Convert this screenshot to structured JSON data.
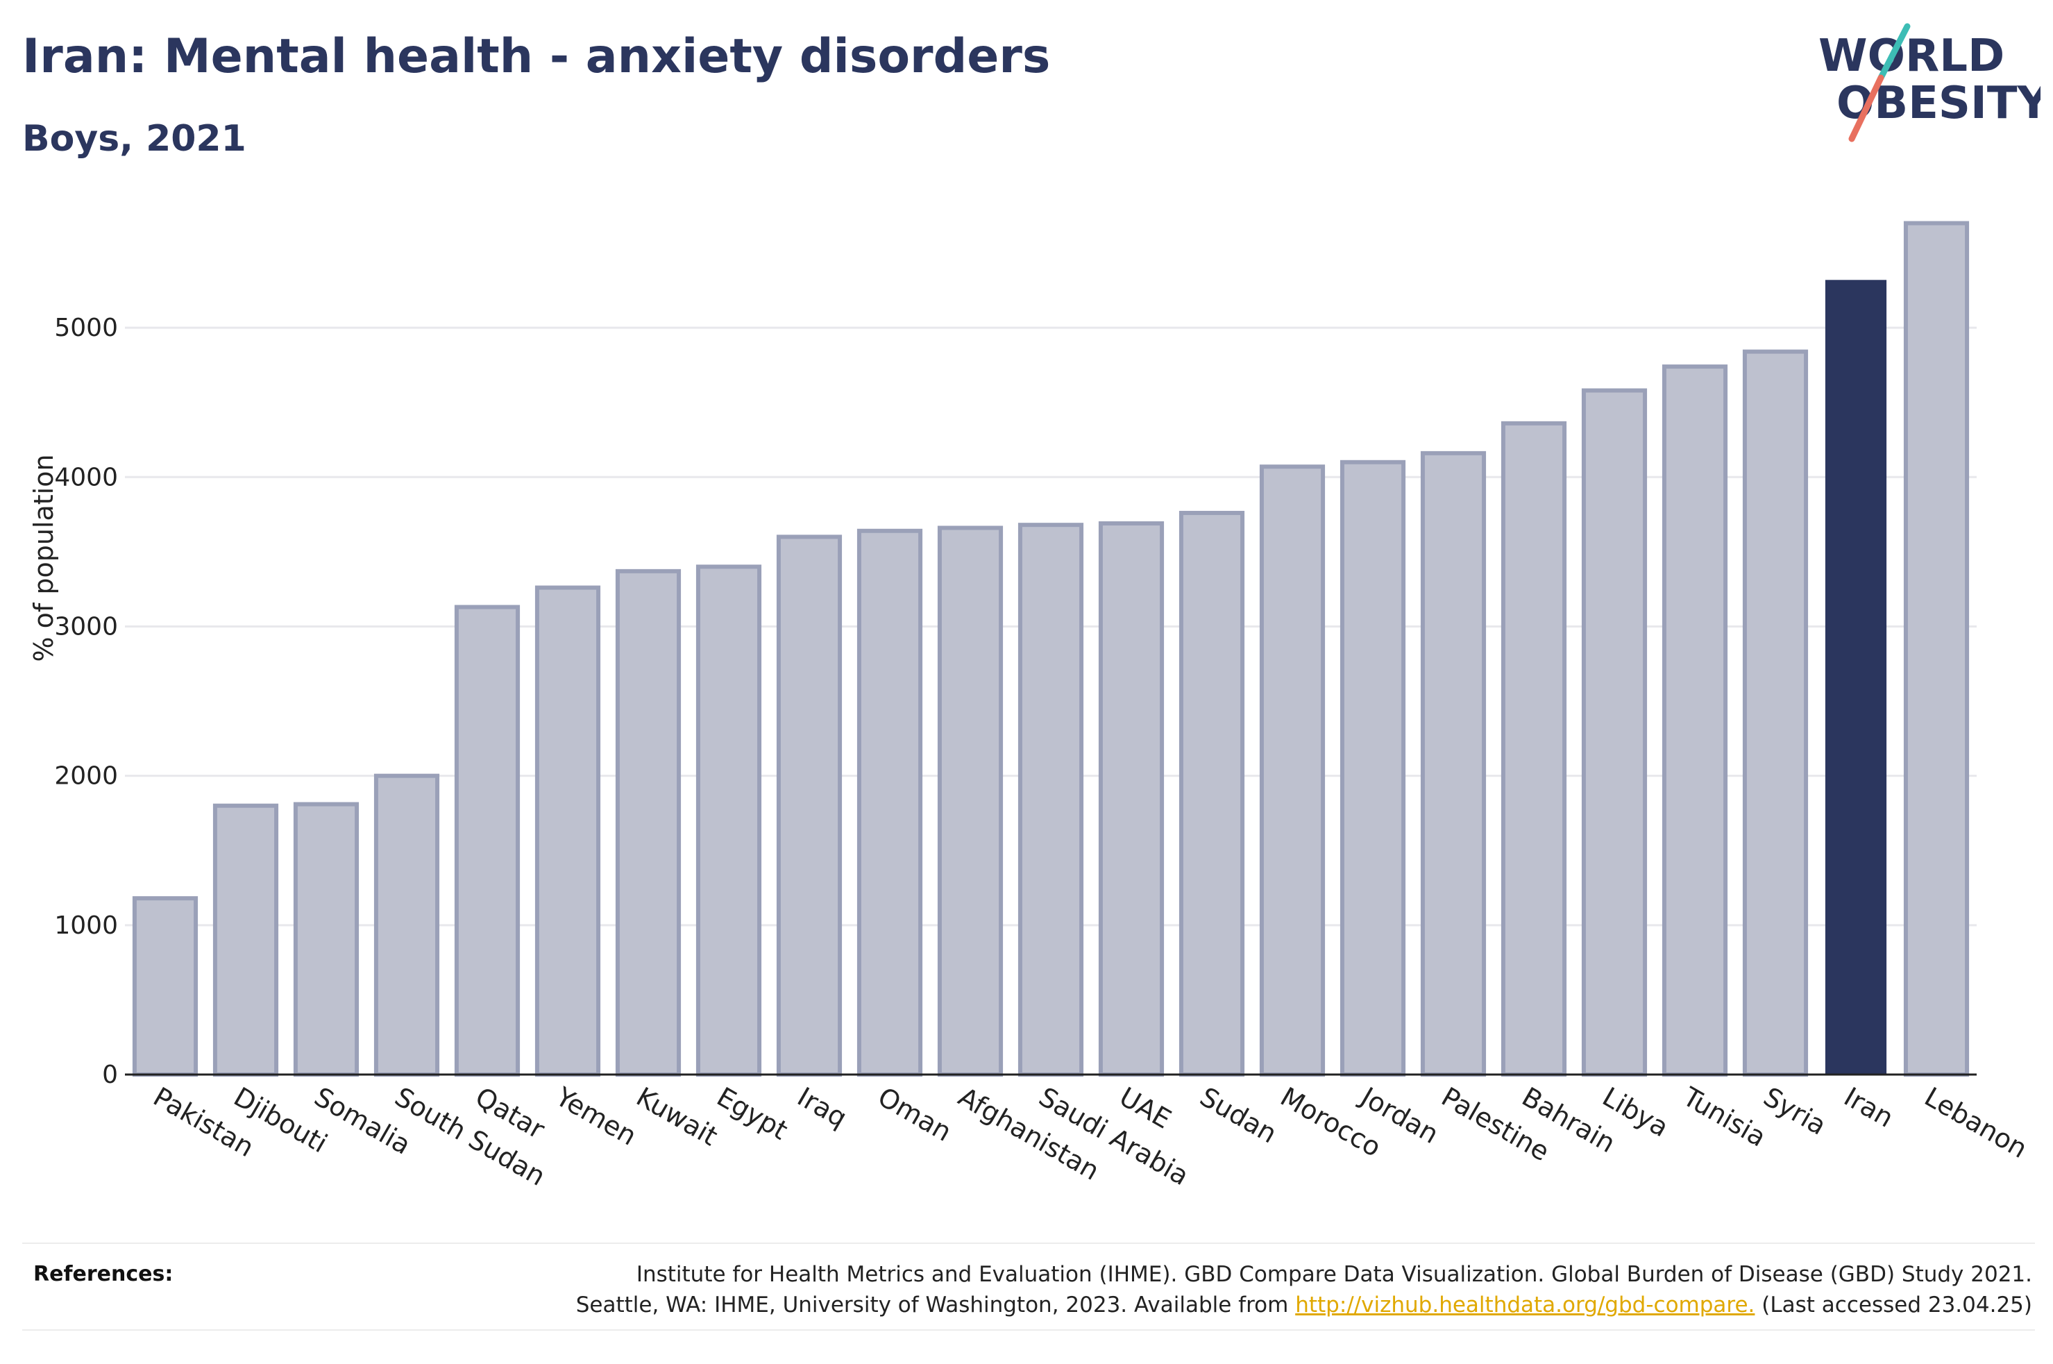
{
  "header": {
    "title": "Iran: Mental health - anxiety disorders",
    "subtitle": "Boys, 2021"
  },
  "logo": {
    "line1": "WORLD",
    "line2": "OBESITY",
    "text_color": "#2b365e",
    "slash_colors": [
      "#3dbdb5",
      "#e8705f"
    ]
  },
  "chart_data": {
    "type": "bar",
    "ylabel": "% of population",
    "ylim": [
      0,
      5800
    ],
    "yticks": [
      0,
      1000,
      2000,
      3000,
      4000,
      5000
    ],
    "grid": true,
    "categories": [
      "Pakistan",
      "Djibouti",
      "Somalia",
      "South Sudan",
      "Qatar",
      "Yemen",
      "Kuwait",
      "Egypt",
      "Iraq",
      "Oman",
      "Afghanistan",
      "Saudi Arabia",
      "UAE",
      "Sudan",
      "Morocco",
      "Jordan",
      "Palestine",
      "Bahrain",
      "Libya",
      "Tunisia",
      "Syria",
      "Iran",
      "Lebanon"
    ],
    "values": [
      1180,
      1800,
      1810,
      2000,
      3130,
      3260,
      3370,
      3400,
      3600,
      3640,
      3660,
      3680,
      3690,
      3760,
      4070,
      4100,
      4160,
      4360,
      4580,
      4740,
      4840,
      5320,
      5700
    ],
    "highlight": "Iran",
    "colors": {
      "bar": "#bec1cf",
      "bar_border": "#9aa0b8",
      "highlight": "#2b365e"
    }
  },
  "references": {
    "label": "References:",
    "line1": "Institute for Health Metrics and Evaluation (IHME). GBD Compare Data Visualization. Global Burden of Disease (GBD) Study 2021.",
    "line2_before": "Seattle, WA: IHME, University of Washington, 2023. Available from",
    "link": "http://vizhub.healthdata.org/gbd-compare.",
    "line2_after": "(Last accessed 23.04.25)"
  }
}
